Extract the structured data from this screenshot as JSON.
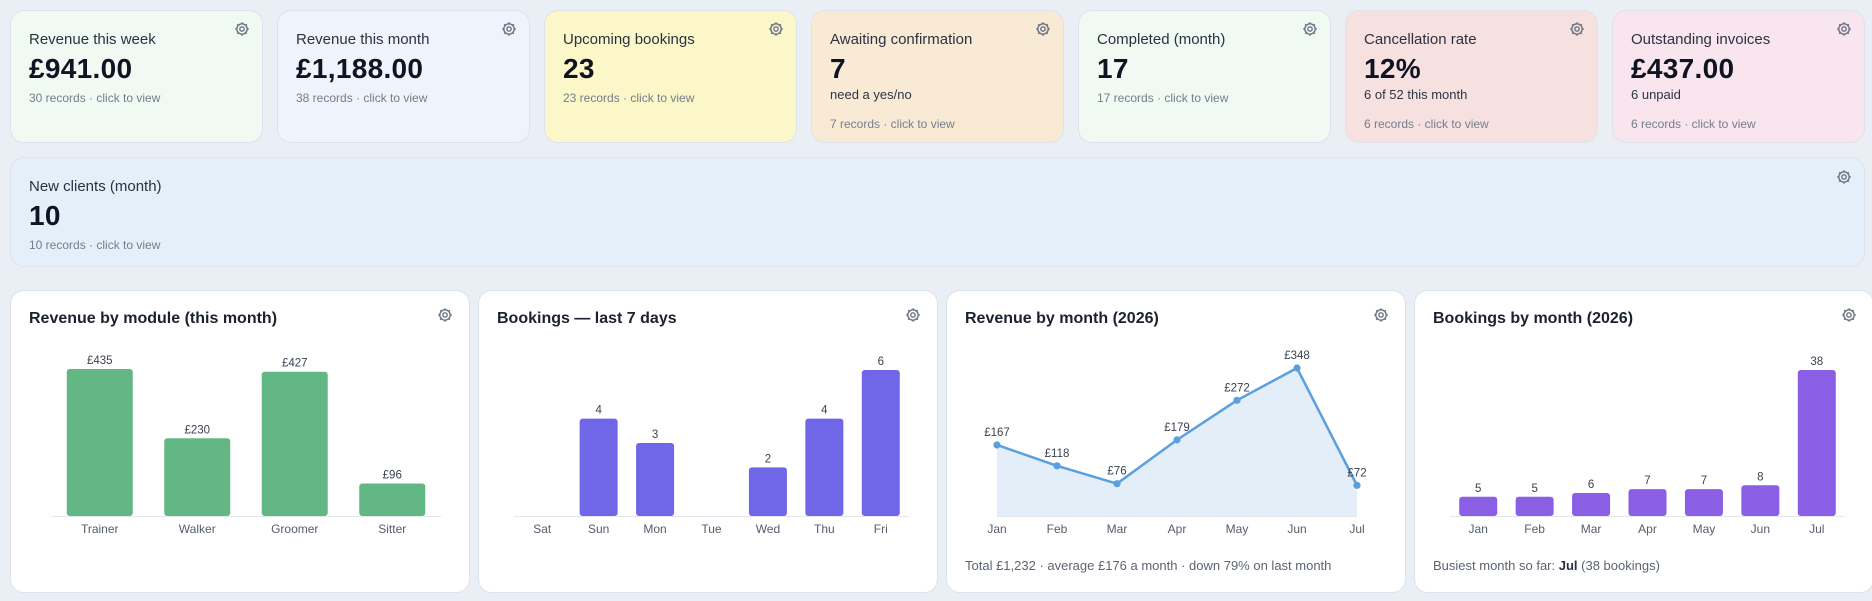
{
  "stats": [
    {
      "title": "Revenue this week",
      "value": "£941.00",
      "sub": "",
      "records": "30 records · click to view",
      "bg": "#f0f9f2"
    },
    {
      "title": "Revenue this month",
      "value": "£1,188.00",
      "sub": "",
      "records": "38 records · click to view",
      "bg": "#eef3fc"
    },
    {
      "title": "Upcoming bookings",
      "value": "23",
      "sub": "",
      "records": "23 records · click to view",
      "bg": "#fbf7c9"
    },
    {
      "title": "Awaiting confirmation",
      "value": "7",
      "sub": "need a yes/no",
      "records": "7 records · click to view",
      "bg": "#f9ead6"
    },
    {
      "title": "Completed (month)",
      "value": "17",
      "sub": "",
      "records": "17 records · click to view",
      "bg": "#f0f9f2"
    },
    {
      "title": "Cancellation rate",
      "value": "12%",
      "sub": "6 of 52 this month",
      "records": "6 records · click to view",
      "bg": "#f7e0e0"
    },
    {
      "title": "Outstanding invoices",
      "value": "£437.00",
      "sub": "6 unpaid",
      "records": "6 records · click to view",
      "bg": "#f8e5ee"
    }
  ],
  "new_clients": {
    "title": "New clients (month)",
    "value": "10",
    "records": "10 records · click to view",
    "bg": "#e4effa"
  },
  "panels": {
    "module": {
      "title": "Revenue by module (this month)"
    },
    "week": {
      "title": "Bookings — last 7 days"
    },
    "revmonth": {
      "title": "Revenue by month (2026)",
      "footer": "Total £1,232 · average £176 a month · down 79% on last month"
    },
    "bookmonth": {
      "title": "Bookings by month (2026)",
      "footer_prefix": "Busiest month so far: ",
      "footer_bold": "Jul",
      "footer_suffix": " (38 bookings)"
    }
  },
  "icons": {
    "settings": "gear-icon"
  },
  "chart_data": [
    {
      "type": "bar",
      "title": "Revenue by module (this month)",
      "categories": [
        "Trainer",
        "Walker",
        "Groomer",
        "Sitter"
      ],
      "values": [
        435,
        230,
        427,
        96
      ],
      "value_labels": [
        "£435",
        "£230",
        "£427",
        "£96"
      ],
      "color": "#63b784"
    },
    {
      "type": "bar",
      "title": "Bookings — last 7 days",
      "categories": [
        "Sat",
        "Sun",
        "Mon",
        "Tue",
        "Wed",
        "Thu",
        "Fri"
      ],
      "values": [
        0,
        4,
        3,
        0,
        2,
        4,
        6
      ],
      "value_labels": [
        "",
        "4",
        "3",
        "",
        "2",
        "4",
        "6"
      ],
      "color": "#6f67e8"
    },
    {
      "type": "area",
      "title": "Revenue by month (2026)",
      "categories": [
        "Jan",
        "Feb",
        "Mar",
        "Apr",
        "May",
        "Jun",
        "Jul"
      ],
      "values": [
        167,
        118,
        76,
        179,
        272,
        348,
        72
      ],
      "value_labels": [
        "£167",
        "£118",
        "£76",
        "£179",
        "£272",
        "£348",
        "£72"
      ],
      "color": "#5aa0de",
      "fill": "#e3eef9"
    },
    {
      "type": "bar",
      "title": "Bookings by month (2026)",
      "categories": [
        "Jan",
        "Feb",
        "Mar",
        "Apr",
        "May",
        "Jun",
        "Jul"
      ],
      "values": [
        5,
        5,
        6,
        7,
        7,
        8,
        38
      ],
      "value_labels": [
        "5",
        "5",
        "6",
        "7",
        "7",
        "8",
        "38"
      ],
      "color": "#8a5fe6"
    }
  ]
}
